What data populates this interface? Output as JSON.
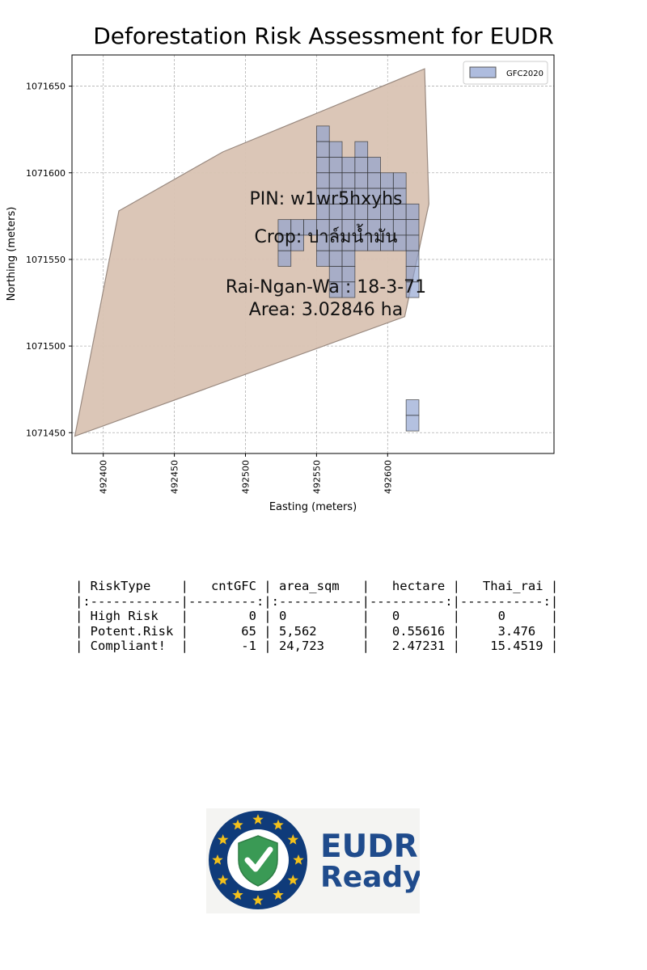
{
  "chart_data": {
    "type": "map",
    "title": "Deforestation Risk Assessment for EUDR",
    "xlabel": "Easting (meters)",
    "ylabel": "Northing (meters)",
    "xlim": [
      492378,
      492717
    ],
    "ylim": [
      1071438,
      1071668
    ],
    "xticks": [
      492400,
      492450,
      492500,
      492550,
      492600
    ],
    "yticks": [
      1071450,
      1071500,
      1071550,
      1071600,
      1071650
    ],
    "grid": true,
    "legend": {
      "position": "top-right",
      "entries": [
        "GFC2020"
      ]
    },
    "colors": {
      "parcel_fill": "#d9c3b3",
      "parcel_edge": "#9a8a80",
      "gfc_fill": "#8c9fd0",
      "gfc_edge": "#333333"
    },
    "parcel_polygon": [
      [
        492380,
        1071448
      ],
      [
        492411,
        1071578
      ],
      [
        492484,
        1071612
      ],
      [
        492626,
        1071660
      ],
      [
        492629,
        1071582
      ],
      [
        492612,
        1071517
      ]
    ],
    "gfc_cells": [
      [
        492550,
        1071618
      ],
      [
        492550,
        1071609
      ],
      [
        492559,
        1071609
      ],
      [
        492577,
        1071609
      ],
      [
        492550,
        1071600
      ],
      [
        492559,
        1071600
      ],
      [
        492568,
        1071600
      ],
      [
        492577,
        1071600
      ],
      [
        492586,
        1071600
      ],
      [
        492550,
        1071591
      ],
      [
        492559,
        1071591
      ],
      [
        492568,
        1071591
      ],
      [
        492577,
        1071591
      ],
      [
        492586,
        1071591
      ],
      [
        492595,
        1071591
      ],
      [
        492604,
        1071591
      ],
      [
        492550,
        1071582
      ],
      [
        492559,
        1071582
      ],
      [
        492568,
        1071582
      ],
      [
        492577,
        1071582
      ],
      [
        492586,
        1071582
      ],
      [
        492595,
        1071582
      ],
      [
        492604,
        1071582
      ],
      [
        492550,
        1071573
      ],
      [
        492559,
        1071573
      ],
      [
        492568,
        1071573
      ],
      [
        492577,
        1071573
      ],
      [
        492586,
        1071573
      ],
      [
        492595,
        1071573
      ],
      [
        492604,
        1071573
      ],
      [
        492613,
        1071573
      ],
      [
        492523,
        1071564
      ],
      [
        492532,
        1071564
      ],
      [
        492541,
        1071564
      ],
      [
        492550,
        1071564
      ],
      [
        492559,
        1071564
      ],
      [
        492568,
        1071564
      ],
      [
        492577,
        1071564
      ],
      [
        492586,
        1071564
      ],
      [
        492595,
        1071564
      ],
      [
        492604,
        1071564
      ],
      [
        492613,
        1071564
      ],
      [
        492523,
        1071555
      ],
      [
        492532,
        1071555
      ],
      [
        492550,
        1071555
      ],
      [
        492559,
        1071555
      ],
      [
        492568,
        1071555
      ],
      [
        492577,
        1071555
      ],
      [
        492586,
        1071555
      ],
      [
        492595,
        1071555
      ],
      [
        492604,
        1071555
      ],
      [
        492613,
        1071555
      ],
      [
        492523,
        1071546
      ],
      [
        492550,
        1071546
      ],
      [
        492559,
        1071546
      ],
      [
        492568,
        1071546
      ],
      [
        492613,
        1071546
      ],
      [
        492559,
        1071537
      ],
      [
        492568,
        1071537
      ],
      [
        492613,
        1071537
      ],
      [
        492559,
        1071528
      ],
      [
        492568,
        1071528
      ],
      [
        492613,
        1071528
      ],
      [
        492613,
        1071460
      ],
      [
        492613,
        1071451
      ]
    ],
    "cell_size": [
      9,
      9
    ],
    "annotation_lines": [
      "PIN: w1wr5hxyhs",
      "Crop: ปาล์มน้ำมัน",
      "Rai-Ngan-Wa : 18-3-71",
      "Area: 3.02846 ha"
    ]
  },
  "risk_table": {
    "lines": [
      "| RiskType    |   cntGFC | area_sqm   |   hectare |   Thai_rai |",
      "|:------------|---------:|:-----------|----------:|-----------:|",
      "| High Risk   |        0 | 0          |   0       |     0      |",
      "| Potent.Risk |       65 | 5,562      |   0.55616 |     3.476  |",
      "| Compliant!  |       -1 | 24,723     |   2.47231 |    15.4519 |"
    ]
  },
  "badge": {
    "line1": "EUDR",
    "line2": "Ready",
    "colors": {
      "ring": "#0f3b7a",
      "star": "#f2c01b",
      "shield": "#3a9a55",
      "text": "#1f4b8c"
    }
  }
}
